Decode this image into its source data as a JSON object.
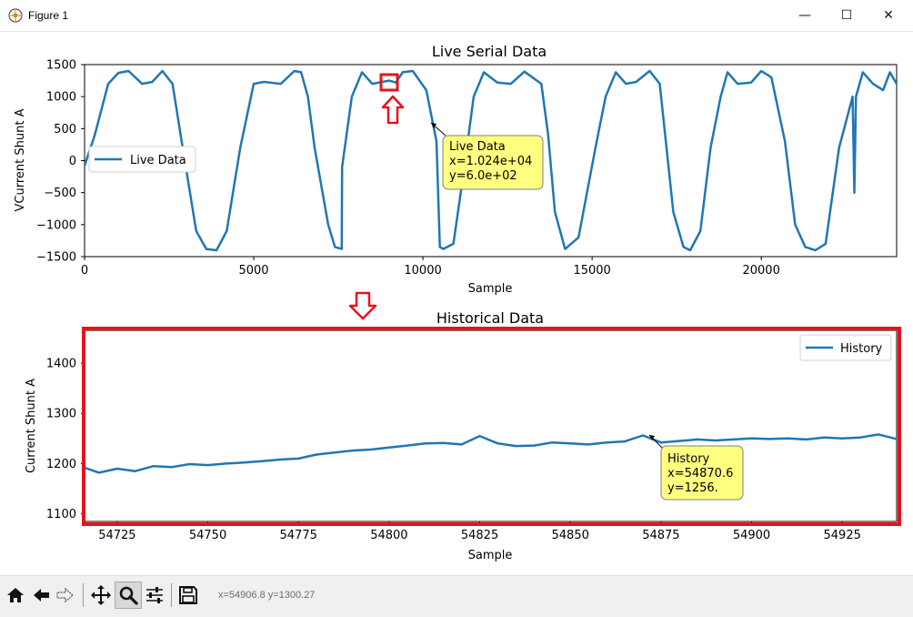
{
  "window": {
    "title": "Figure 1",
    "controls": [
      "—",
      "☐",
      "✕"
    ]
  },
  "top_plot": {
    "title": "Live Serial Data",
    "xlabel": "Sample",
    "ylabel": "VCurrent Shunt A",
    "legend": "Live Data",
    "annotation": [
      "Live Data",
      "x=1.024e+04",
      "y=6.0e+02"
    ],
    "annotation_point": {
      "x": 10240,
      "y": 600
    }
  },
  "bottom_plot": {
    "title": "Historical Data",
    "xlabel": "Sample",
    "ylabel": "Current Shunt A",
    "legend": "History",
    "annotation": [
      "History",
      "x=54870.6",
      "y=1256."
    ],
    "annotation_point": {
      "x": 54870.6,
      "y": 1256
    }
  },
  "markup": {
    "highlight_color": "#e3141e",
    "note": "red boxes and arrows are overlay markup"
  },
  "toolbar": {
    "buttons": [
      "home-icon",
      "back-icon",
      "forward-icon",
      "pan-icon",
      "zoom-icon",
      "configure-icon",
      "save-icon"
    ],
    "active": "zoom-icon",
    "coord_text": "x=54906.8  y=1300.27"
  },
  "colors": {
    "line": "#1f77b4",
    "annotation_fill": "#ffff80",
    "annotation_border": "#7f7f7f"
  },
  "chart_data": [
    {
      "type": "line",
      "title": "Live Serial Data",
      "xlabel": "Sample",
      "ylabel": "VCurrent Shunt A",
      "xlim": [
        0,
        24000
      ],
      "ylim": [
        -1500,
        1500
      ],
      "xticks": [
        0,
        5000,
        10000,
        15000,
        20000
      ],
      "yticks": [
        1500,
        1000,
        500,
        0,
        -500,
        -1000,
        -1500
      ],
      "legend_position": "center-left",
      "grid": false,
      "series": [
        {
          "name": "Live Data",
          "x": [
            0,
            300,
            700,
            1000,
            1300,
            1700,
            2000,
            2300,
            2600,
            2900,
            3300,
            3600,
            3900,
            4200,
            4600,
            5000,
            5300,
            5800,
            6200,
            6400,
            6600,
            6800,
            7200,
            7400,
            7600,
            7610,
            7900,
            8200,
            8500,
            8800,
            9000,
            9200,
            9400,
            9700,
            10100,
            10400,
            10500,
            10600,
            10900,
            11200,
            11500,
            11800,
            12200,
            12600,
            13000,
            13500,
            13700,
            13900,
            14200,
            14600,
            15100,
            15400,
            15700,
            16000,
            16300,
            16700,
            17000,
            17400,
            17700,
            17900,
            18200,
            18500,
            18800,
            19000,
            19300,
            19700,
            20000,
            20300,
            20700,
            21000,
            21300,
            21600,
            21900,
            22300,
            22700,
            22750,
            22800,
            23000,
            23300,
            23600,
            23800,
            24000
          ],
          "y": [
            -80,
            400,
            1200,
            1370,
            1400,
            1200,
            1230,
            1400,
            1200,
            200,
            -1100,
            -1380,
            -1400,
            -1100,
            200,
            1200,
            1230,
            1200,
            1400,
            1380,
            1000,
            200,
            -1000,
            -1350,
            -1380,
            -100,
            1000,
            1380,
            1200,
            1230,
            1250,
            1220,
            1380,
            1400,
            1100,
            300,
            -1350,
            -1380,
            -1300,
            -200,
            1000,
            1380,
            1220,
            1200,
            1390,
            1200,
            400,
            -800,
            -1380,
            -1200,
            200,
            1000,
            1380,
            1200,
            1230,
            1400,
            1200,
            -800,
            -1350,
            -1400,
            -1100,
            200,
            1000,
            1380,
            1200,
            1220,
            1400,
            1300,
            300,
            -1000,
            -1350,
            -1400,
            -1300,
            200,
            1000,
            -500,
            1000,
            1380,
            1200,
            1100,
            1380,
            1200
          ]
        }
      ]
    },
    {
      "type": "line",
      "title": "Historical Data",
      "xlabel": "Sample",
      "ylabel": "Current Shunt A",
      "xlim": [
        54716,
        54940
      ],
      "ylim": [
        1085,
        1465
      ],
      "xticks": [
        54725,
        54750,
        54775,
        54800,
        54825,
        54850,
        54875,
        54900,
        54925
      ],
      "yticks": [
        1400,
        1300,
        1200,
        1100
      ],
      "legend_position": "top-right",
      "grid": false,
      "series": [
        {
          "name": "History",
          "x": [
            54716,
            54720,
            54725,
            54730,
            54735,
            54740,
            54745,
            54750,
            54755,
            54760,
            54765,
            54770,
            54775,
            54780,
            54785,
            54790,
            54795,
            54800,
            54805,
            54810,
            54815,
            54820,
            54825,
            54830,
            54835,
            54840,
            54845,
            54850,
            54855,
            54860,
            54865,
            54870,
            54875,
            54880,
            54885,
            54890,
            54895,
            54900,
            54905,
            54910,
            54915,
            54920,
            54925,
            54930,
            54935,
            54940
          ],
          "y": [
            1192,
            1182,
            1190,
            1185,
            1195,
            1193,
            1199,
            1197,
            1200,
            1202,
            1205,
            1208,
            1210,
            1218,
            1222,
            1226,
            1228,
            1232,
            1236,
            1240,
            1241,
            1238,
            1255,
            1240,
            1235,
            1236,
            1242,
            1240,
            1238,
            1242,
            1244,
            1256,
            1242,
            1245,
            1248,
            1246,
            1248,
            1250,
            1249,
            1250,
            1248,
            1252,
            1250,
            1252,
            1258,
            1249
          ]
        }
      ]
    }
  ]
}
